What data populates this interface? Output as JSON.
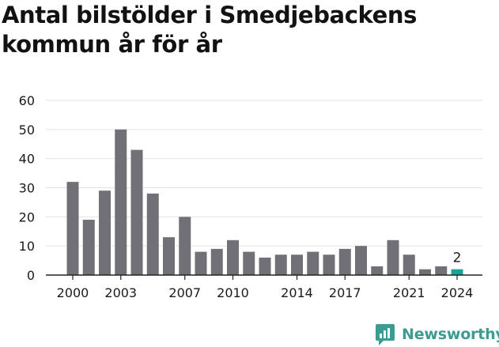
{
  "title": "Antal bilstölder i Smedjebackens kommun år för år",
  "brand": {
    "name": "Newsworthy",
    "icon": "newsworthy-logo-icon"
  },
  "colors": {
    "bar": "#727077",
    "highlight": "#1aa395",
    "grid": "#e3e3e3",
    "axis": "#222222",
    "text": "#1a1a1a",
    "brand": "#3d9b91"
  },
  "chart_data": {
    "type": "bar",
    "title": "Antal bilstölder i Smedjebackens kommun år för år",
    "categories": [
      "2000",
      "2001",
      "2002",
      "2003",
      "2004",
      "2005",
      "2006",
      "2007",
      "2008",
      "2009",
      "2010",
      "2011",
      "2012",
      "2013",
      "2014",
      "2015",
      "2016",
      "2017",
      "2018",
      "2019",
      "2020",
      "2021",
      "2022",
      "2023",
      "2024"
    ],
    "values": [
      32,
      19,
      29,
      50,
      43,
      28,
      13,
      20,
      8,
      9,
      12,
      8,
      6,
      7,
      7,
      8,
      7,
      9,
      10,
      3,
      12,
      7,
      2,
      3,
      2
    ],
    "x_tick_labels": [
      "2000",
      "2003",
      "2007",
      "2010",
      "2014",
      "2017",
      "2021",
      "2024"
    ],
    "y_ticks": [
      0,
      10,
      20,
      30,
      40,
      50,
      60
    ],
    "ylim": [
      0,
      60
    ],
    "highlight": {
      "category": "2024",
      "label": "2"
    },
    "xlabel": "",
    "ylabel": "",
    "grid": true,
    "legend": "none"
  }
}
